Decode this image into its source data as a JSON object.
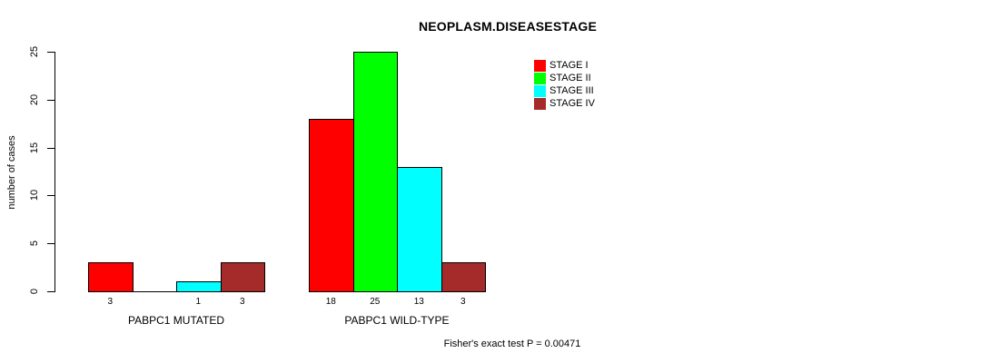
{
  "chart_data": {
    "type": "bar",
    "title": "NEOPLASM.DISEASESTAGE",
    "xlabel": "",
    "ylabel": "number of cases",
    "ylim": [
      0,
      25
    ],
    "yticks": [
      "0",
      "5",
      "10",
      "15",
      "20",
      "25"
    ],
    "grid": false,
    "legend_position": "top-right",
    "categories": [
      "PABPC1 MUTATED",
      "PABPC1 WILD-TYPE"
    ],
    "series": [
      {
        "name": "STAGE I",
        "color": "#FF0000",
        "values": [
          3,
          18
        ]
      },
      {
        "name": "STAGE II",
        "color": "#00FF00",
        "values": [
          0,
          25
        ]
      },
      {
        "name": "STAGE III",
        "color": "#00FFFF",
        "values": [
          1,
          13
        ]
      },
      {
        "name": "STAGE IV",
        "color": "#A52A2A",
        "values": [
          3,
          3
        ]
      }
    ],
    "bar_value_labels": [
      [
        "3",
        "",
        "1",
        "3"
      ],
      [
        "18",
        "25",
        "13",
        "3"
      ]
    ],
    "annotation": "Fisher's exact test P = 0.00471",
    "colors": {
      "bar_border": "#000000",
      "axis": "#000000",
      "background": "#FFFFFF"
    }
  }
}
